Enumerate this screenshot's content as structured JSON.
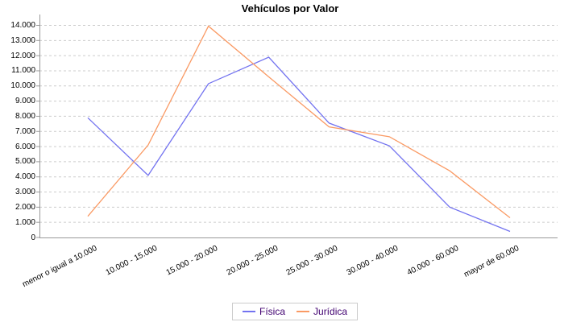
{
  "chart_data": {
    "type": "line",
    "title": "Vehículos por Valor",
    "categories": [
      "menor o igual a 10.000",
      "10.000 - 15.000",
      "15.000 - 20.000",
      "20.000 - 25.000",
      "25.000 - 30.000",
      "30.000 - 40.000",
      "40.000 - 60.000",
      "mayor de 60.000"
    ],
    "series": [
      {
        "name": "Física",
        "color": "#7373F0",
        "values": [
          7900,
          4100,
          10150,
          11900,
          7550,
          6050,
          2000,
          400
        ]
      },
      {
        "name": "Jurídica",
        "color": "#FA9A64",
        "values": [
          1400,
          6100,
          13950,
          10600,
          7300,
          6650,
          4400,
          1300
        ]
      }
    ],
    "xlabel": "",
    "ylabel": "",
    "ylim": [
      0,
      14000
    ],
    "y_tick_step": 1000,
    "y_tick_labels": [
      "0",
      "1.000",
      "2.000",
      "3.000",
      "4.000",
      "5.000",
      "6.000",
      "7.000",
      "8.000",
      "9.000",
      "10.000",
      "11.000",
      "12.000",
      "13.000",
      "14.000"
    ],
    "grid": "horizontal dashed",
    "legend_position": "bottom-center",
    "x_label_rotation_deg": -27
  },
  "colors": {
    "background": "#FFFFFF",
    "grid": "#CCCCCC",
    "axis": "#999999",
    "tick_label": "#000000",
    "title": "#000000",
    "legend_text": "#400070",
    "legend_border": "#CCCCCC"
  }
}
